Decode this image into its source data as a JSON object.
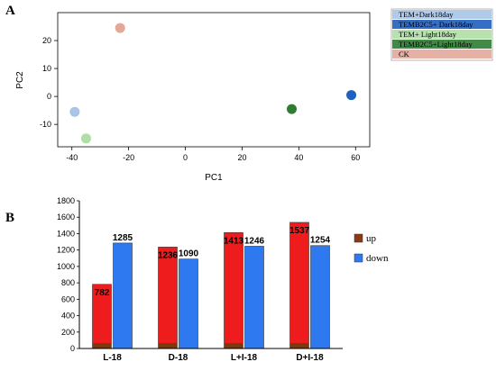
{
  "chart_data": [
    {
      "type": "scatter",
      "panel": "A",
      "xlabel": "PC1",
      "ylabel": "PC2",
      "xlim": [
        -45,
        65
      ],
      "ylim": [
        -18,
        30
      ],
      "x_ticks": [
        -40,
        -20,
        0,
        20,
        40,
        60
      ],
      "y_ticks": [
        -10,
        0,
        10,
        20
      ],
      "grid": false,
      "legend_position": "outside-right-top",
      "series": [
        {
          "name": "TEM+Dark18day",
          "color": "#a9c4e8",
          "points": [
            {
              "x": -39,
              "y": -5.5
            }
          ]
        },
        {
          "name": "TEMB2C5+ Dark18day",
          "color": "#1f5fbf",
          "points": [
            {
              "x": 58.5,
              "y": 0.5
            }
          ]
        },
        {
          "name": "TEM+ Light18day",
          "color": "#b0dfa4",
          "points": [
            {
              "x": -35,
              "y": -15
            }
          ]
        },
        {
          "name": "TEMB2C5+Light18day",
          "color": "#2e7d32",
          "points": [
            {
              "x": 37.5,
              "y": -4.5
            }
          ]
        },
        {
          "name": "CK",
          "color": "#e3a89a",
          "points": [
            {
              "x": -23,
              "y": 24.5
            }
          ]
        }
      ]
    },
    {
      "type": "bar",
      "panel": "B",
      "categories": [
        "L-18",
        "D-18",
        "L+I-18",
        "D+I-18"
      ],
      "ylim": [
        0,
        1800
      ],
      "y_ticks": [
        0,
        200,
        400,
        600,
        800,
        1000,
        1200,
        1400,
        1600,
        1800
      ],
      "grid": false,
      "legend_position": "right",
      "series": [
        {
          "name": "up",
          "color": "#ee1c1c",
          "values": [
            782,
            1236,
            1413,
            1537
          ]
        },
        {
          "name": "down",
          "color": "#2f79f0",
          "values": [
            1285,
            1090,
            1246,
            1254
          ]
        }
      ]
    }
  ],
  "panel_labels": {
    "a": "A",
    "b": "B"
  },
  "panel_b_data_labels": {
    "up": [
      "782",
      "1236",
      "1413",
      "1537"
    ],
    "down": [
      "1285",
      "1090",
      "1246",
      "1254"
    ]
  }
}
